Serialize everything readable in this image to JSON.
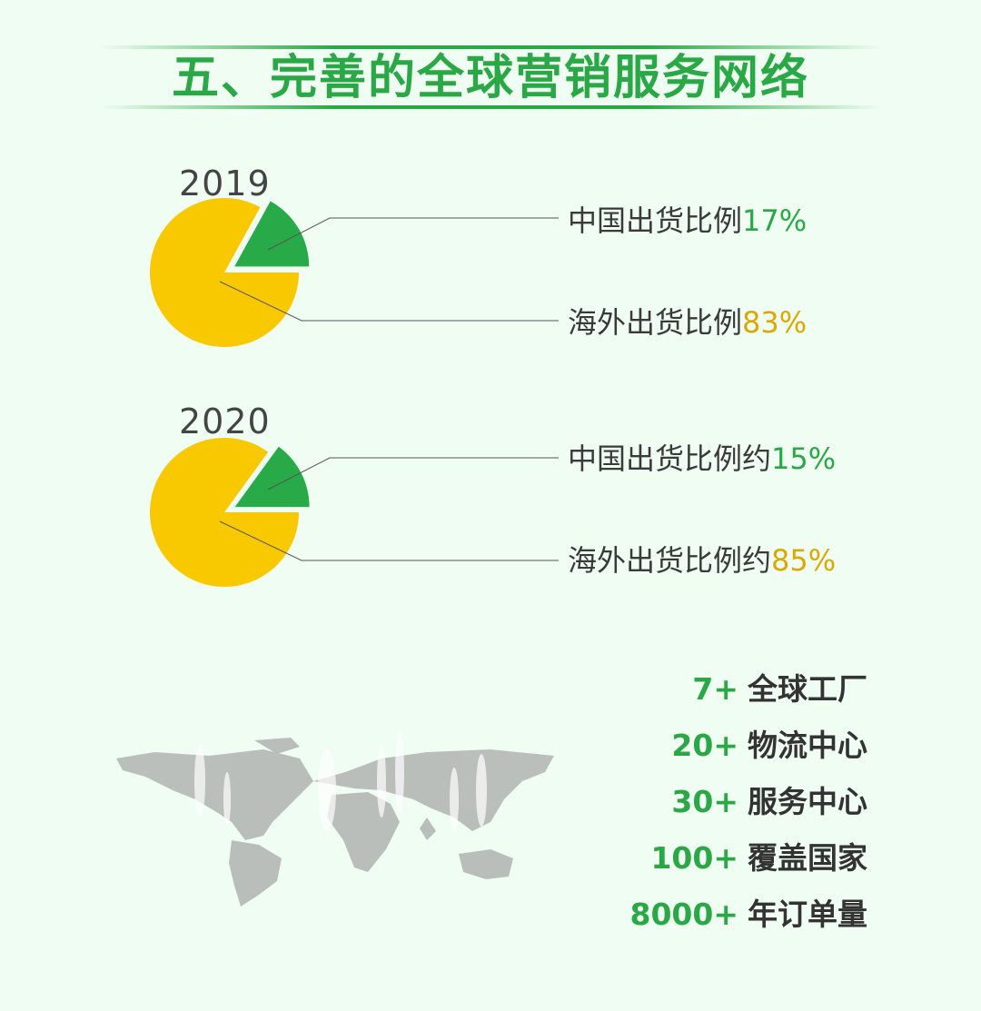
{
  "title": "五、完善的全球营销服务网络",
  "colors": {
    "china": "#28aa48",
    "overseas": "#f8c800",
    "accent": "#2aa845"
  },
  "chart_data": [
    {
      "type": "pie",
      "title": "2019",
      "slices": [
        {
          "label": "中国出货比例",
          "value": 17,
          "display": "17%"
        },
        {
          "label": "海外出货比例",
          "value": 83,
          "display": "83%"
        }
      ]
    },
    {
      "type": "pie",
      "title": "2020",
      "slices": [
        {
          "label": "中国出货比例约",
          "value": 15,
          "display": "15%"
        },
        {
          "label": "海外出货比例约",
          "value": 85,
          "display": "85%"
        }
      ]
    }
  ],
  "stats": [
    {
      "number": "7+",
      "label": "全球工厂"
    },
    {
      "number": "20+",
      "label": "物流中心"
    },
    {
      "number": "30+",
      "label": "服务中心"
    },
    {
      "number": "100+",
      "label": "覆盖国家"
    },
    {
      "number": "8000+",
      "label": "年订单量"
    }
  ],
  "map_icon": "world-map"
}
